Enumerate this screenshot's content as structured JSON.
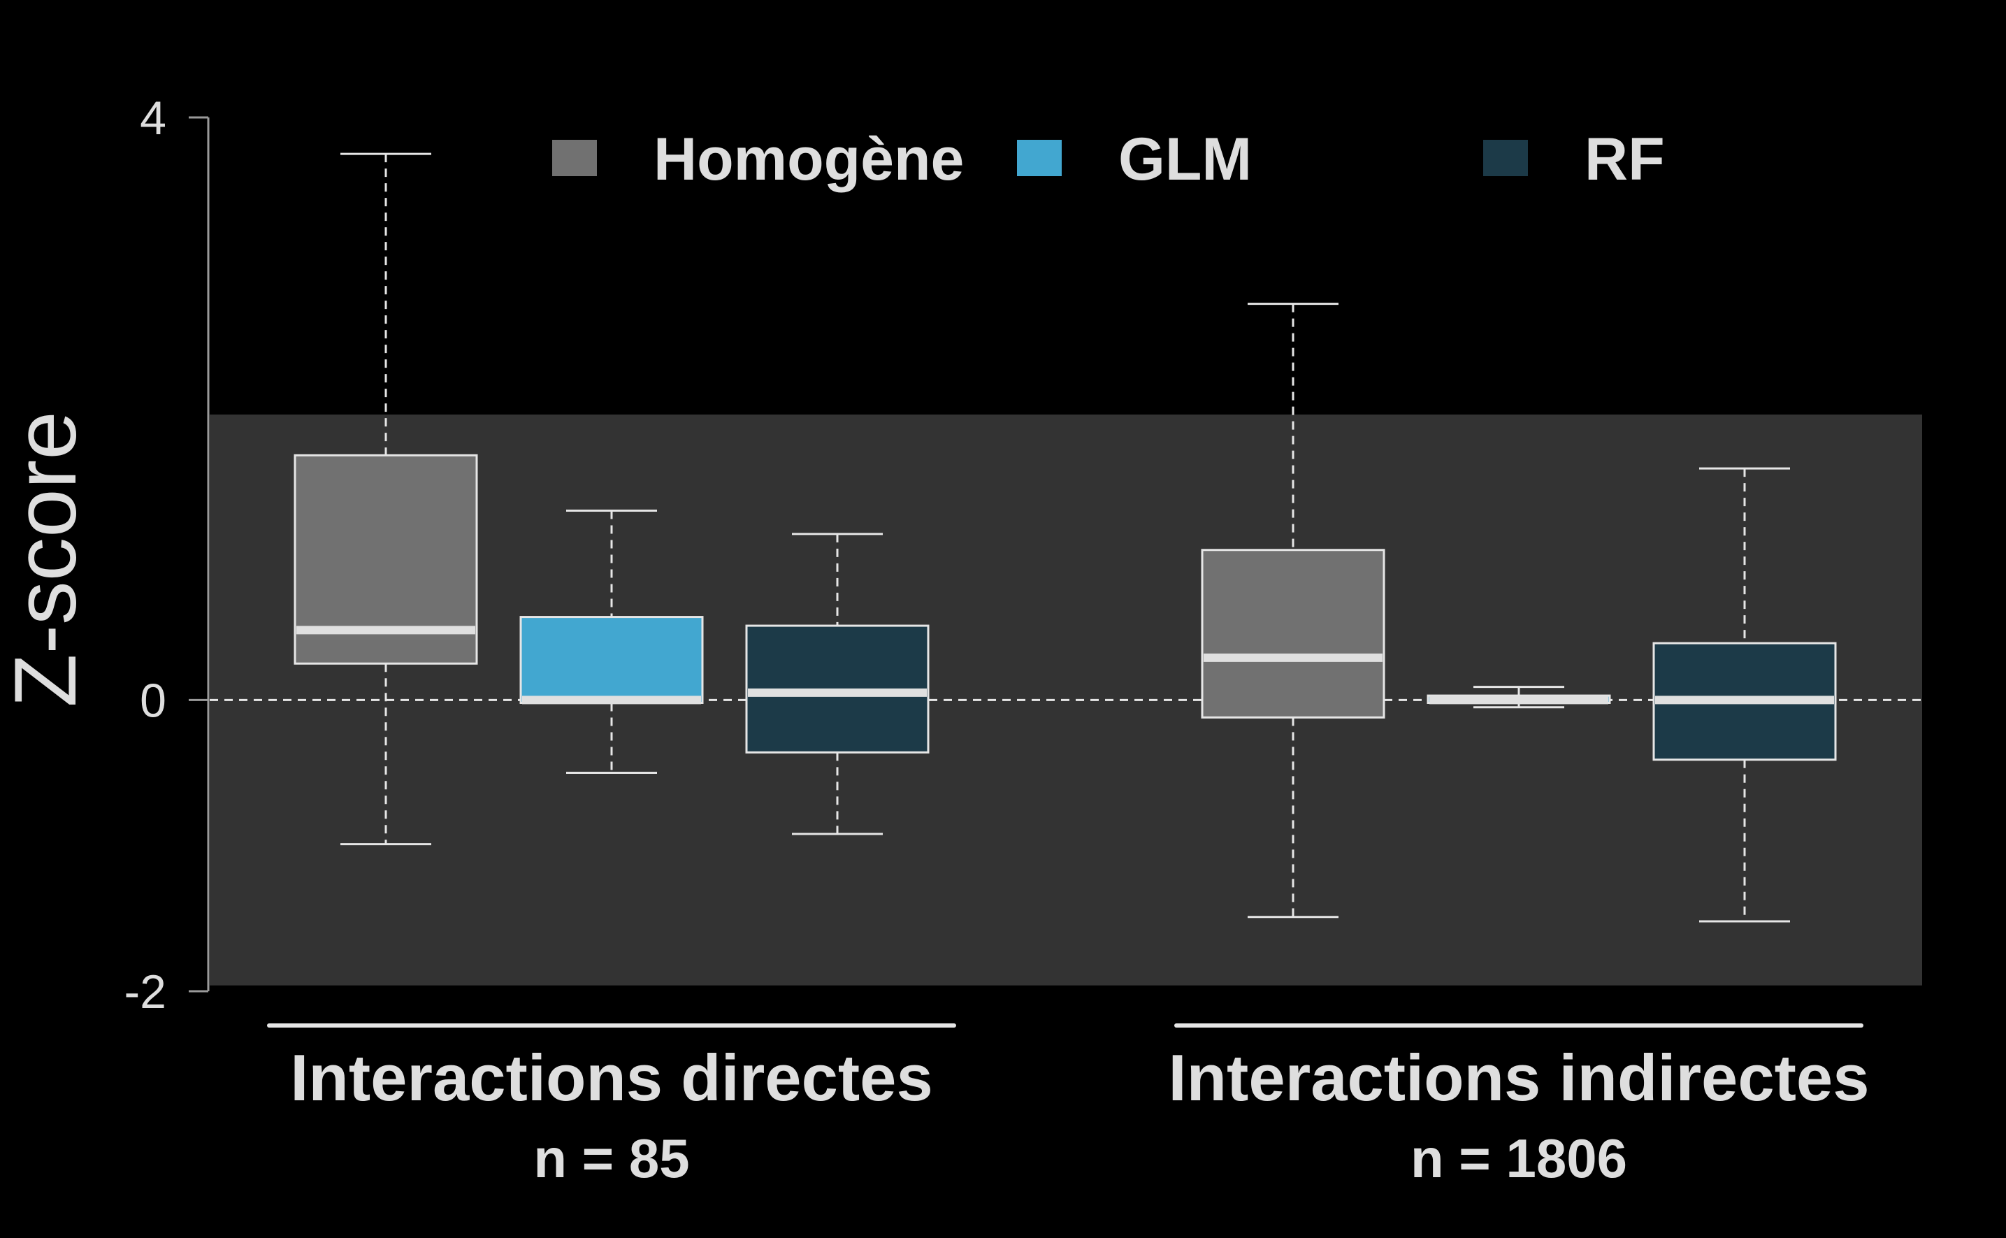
{
  "chart_data": {
    "type": "box",
    "ylabel": "Z-score",
    "ylim": [
      -2,
      4
    ],
    "yticks": [
      "4",
      "0",
      "-2"
    ],
    "ytick_values": [
      4,
      0,
      -2
    ],
    "band": {
      "ymin": -1.96,
      "ymax": 1.96,
      "color": "#333333"
    },
    "zero_line": 0,
    "legend_position": "top",
    "series": [
      {
        "name": "Homogène",
        "color": "#717171"
      },
      {
        "name": "GLM",
        "color": "#42a7d0"
      },
      {
        "name": "RF",
        "color": "#1c3a48"
      }
    ],
    "groups": [
      {
        "label": "Interactions directes",
        "n_label": "n = 85",
        "boxes": [
          {
            "series": "Homogène",
            "min": -0.99,
            "q1": 0.25,
            "median": 0.48,
            "q3": 1.68,
            "max": 3.75
          },
          {
            "series": "GLM",
            "min": -0.5,
            "q1": -0.02,
            "median": 0.0,
            "q3": 0.57,
            "max": 1.3
          },
          {
            "series": "RF",
            "min": -0.92,
            "q1": -0.36,
            "median": 0.05,
            "q3": 0.51,
            "max": 1.14
          }
        ]
      },
      {
        "label": "Interactions indirectes",
        "n_label": "n = 1806",
        "boxes": [
          {
            "series": "Homogène",
            "min": -1.49,
            "q1": -0.12,
            "median": 0.29,
            "q3": 1.03,
            "max": 2.72
          },
          {
            "series": "GLM",
            "min": -0.05,
            "q1": -0.02,
            "median": 0.0,
            "q3": 0.03,
            "max": 0.09
          },
          {
            "series": "RF",
            "min": -1.52,
            "q1": -0.41,
            "median": 0.0,
            "q3": 0.39,
            "max": 1.59
          }
        ]
      }
    ]
  },
  "colors": {
    "background": "#000000",
    "text": "#dedede",
    "axis": "#9a9a9a",
    "box_outline": "#e6e6e6"
  }
}
